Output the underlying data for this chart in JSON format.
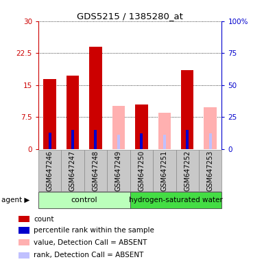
{
  "title": "GDS5215 / 1385280_at",
  "samples": [
    "GSM647246",
    "GSM647247",
    "GSM647248",
    "GSM647249",
    "GSM647250",
    "GSM647251",
    "GSM647252",
    "GSM647253"
  ],
  "red_values": [
    16.5,
    17.2,
    24.0,
    null,
    10.5,
    null,
    18.5,
    null
  ],
  "blue_values": [
    13.0,
    15.0,
    15.0,
    null,
    12.5,
    null,
    15.0,
    null
  ],
  "pink_values": [
    null,
    null,
    null,
    10.2,
    null,
    8.5,
    null,
    9.8
  ],
  "purple_values": [
    null,
    null,
    null,
    11.0,
    null,
    11.0,
    null,
    12.5
  ],
  "ylim_left": [
    0,
    30
  ],
  "ylim_right": [
    0,
    100
  ],
  "yticks_left": [
    0,
    7.5,
    15,
    22.5,
    30
  ],
  "yticks_right": [
    0,
    25,
    50,
    75,
    100
  ],
  "yticklabels_left": [
    "0",
    "7.5",
    "15",
    "22.5",
    "30"
  ],
  "yticklabels_right": [
    "0",
    "25",
    "50",
    "75",
    "100%"
  ],
  "color_red": "#cc0000",
  "color_blue": "#0000cc",
  "color_pink": "#ffb0b0",
  "color_purple": "#c0c0ff",
  "color_bg_xticklabels": "#c8c8c8",
  "color_control": "#bbffbb",
  "color_hydrogen": "#44dd44",
  "bar_width": 0.55,
  "blue_bar_width": 0.12,
  "legend_items": [
    "count",
    "percentile rank within the sample",
    "value, Detection Call = ABSENT",
    "rank, Detection Call = ABSENT"
  ],
  "legend_colors": [
    "#cc0000",
    "#0000cc",
    "#ffb0b0",
    "#c0c0ff"
  ],
  "n_control": 4,
  "n_hydrogen": 4
}
